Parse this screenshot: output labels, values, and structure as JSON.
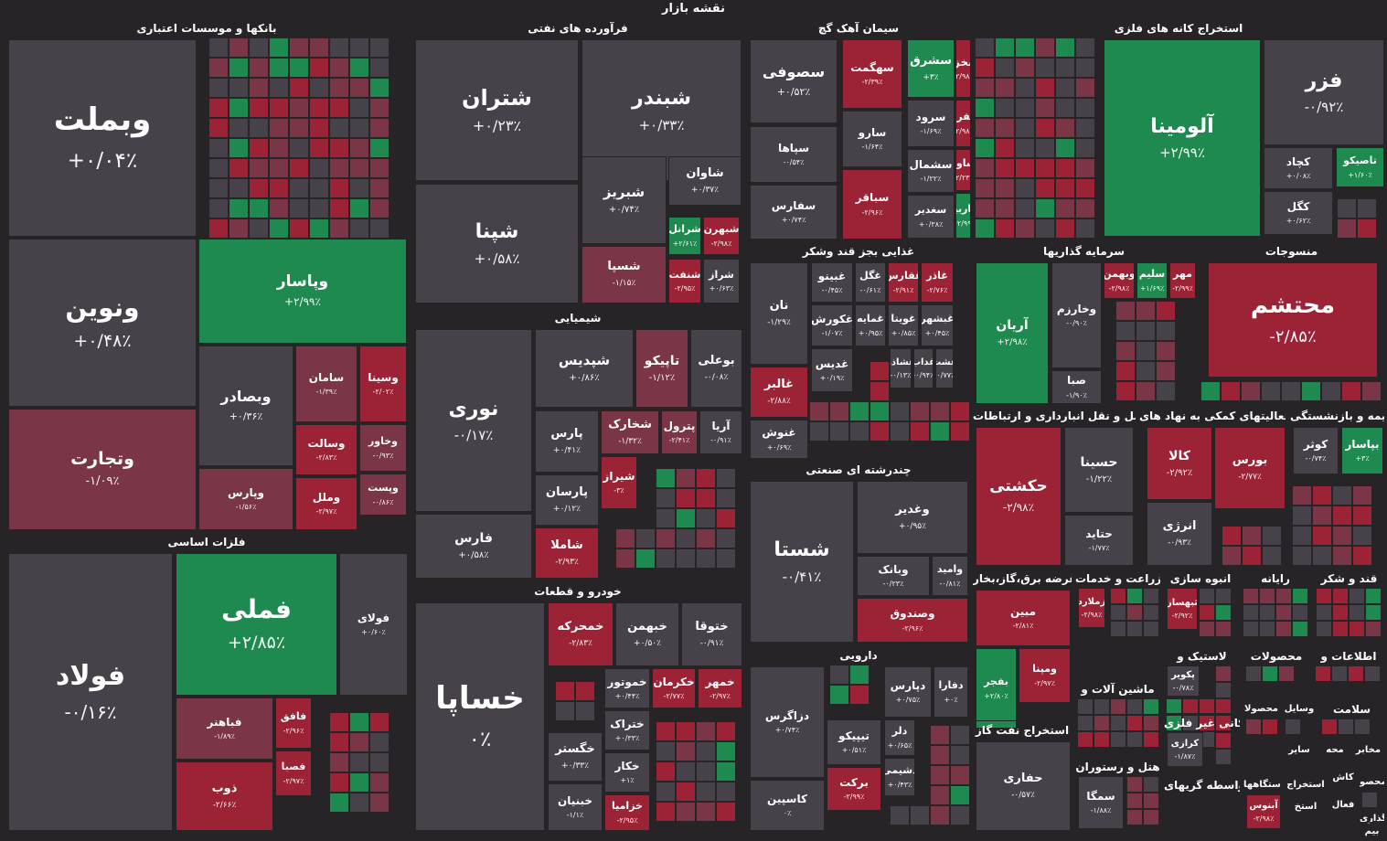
{
  "title": "نقشه بازار",
  "colors": {
    "neutral": "#47424a",
    "pos_strong": "#1e8a50",
    "neg_strong": "#9c2235",
    "neg_mid": "#7a3546",
    "bg": "#262427"
  },
  "chart_data": {
    "type": "treemap",
    "title": "نقشه بازار",
    "sectors": [
      {
        "name": "بانکها و موسسات اعتباری",
        "items": [
          {
            "name": "وبملت",
            "value": "+۰/۰۴٪"
          },
          {
            "name": "ونوین",
            "value": "+۰/۴۸٪"
          },
          {
            "name": "وپاسار",
            "value": "+۲/۹۹٪"
          },
          {
            "name": "وتجارت",
            "value": "-۱/۰۹٪"
          },
          {
            "name": "وبصادر",
            "value": "+۰/۳۶٪"
          },
          {
            "name": "وپارس",
            "value": "-۱/۵۶٪"
          },
          {
            "name": "سامان",
            "value": "-۱/۳۹٪"
          },
          {
            "name": "وسینا",
            "value": "-۲/۰۲٪"
          },
          {
            "name": "وسالت",
            "value": "-۲/۸۳٪"
          },
          {
            "name": "وخاور",
            "value": "-۰/۹۳٪"
          },
          {
            "name": "وملل",
            "value": "-۲/۹۷٪"
          },
          {
            "name": "وپست",
            "value": "-۰/۸۶٪"
          }
        ]
      },
      {
        "name": "فلزات اساسی",
        "items": [
          {
            "name": "فولاد",
            "value": "-۰/۱۶٪"
          },
          {
            "name": "فملی",
            "value": "+۲/۸۵٪"
          },
          {
            "name": "فولای",
            "value": "+۰/۶۰٪"
          },
          {
            "name": "فباهنر",
            "value": "-۱/۸۹٪"
          },
          {
            "name": "فافق",
            "value": "-۲/۹۶٪"
          },
          {
            "name": "فصبا",
            "value": "-۲/۹۷٪"
          },
          {
            "name": "ذوب",
            "value": "-۲/۶۶٪"
          }
        ]
      },
      {
        "name": "فرآورده های نفتی",
        "items": [
          {
            "name": "شتران",
            "value": "+۰/۲۳٪"
          },
          {
            "name": "شبندر",
            "value": "+۰/۳۳٪"
          },
          {
            "name": "شپنا",
            "value": "+۰/۵۸٪"
          },
          {
            "name": "شبریز",
            "value": "+۰/۷۴٪"
          },
          {
            "name": "شاوان",
            "value": "+۰/۳۷٪"
          },
          {
            "name": "شسپا",
            "value": "-۱/۱۵٪"
          },
          {
            "name": "شرانل",
            "value": "+۲/۶۱٪"
          },
          {
            "name": "شبهرن",
            "value": "-۲/۹۸٪"
          },
          {
            "name": "شنفت",
            "value": "-۲/۹۵٪"
          },
          {
            "name": "شراز",
            "value": "+۰/۶۳٪"
          }
        ]
      },
      {
        "name": "شیمیایی",
        "items": [
          {
            "name": "نوری",
            "value": "-۰/۱۷٪"
          },
          {
            "name": "شپدیس",
            "value": "+۰/۸۶٪"
          },
          {
            "name": "تاپیکو",
            "value": "-۱/۱۲٪"
          },
          {
            "name": "بوعلی",
            "value": "-۰/۰۸٪"
          },
          {
            "name": "پارس",
            "value": "+۰/۴۱٪"
          },
          {
            "name": "شخارک",
            "value": "-۱/۳۲٪"
          },
          {
            "name": "پترول",
            "value": "-۲/۴۱٪"
          },
          {
            "name": "آریا",
            "value": "-۰/۹۱٪"
          },
          {
            "name": "پارسان",
            "value": "+۰/۱۲٪"
          },
          {
            "name": "شیراز",
            "value": "-۳٪"
          },
          {
            "name": "فارس",
            "value": "+۰/۵۸٪"
          },
          {
            "name": "شاملا",
            "value": "-۲/۹۳٪"
          }
        ]
      },
      {
        "name": "خودرو و قطعات",
        "items": [
          {
            "name": "خساپا",
            "value": "۰٪"
          },
          {
            "name": "خمحرکه",
            "value": "-۲/۸۳٪"
          },
          {
            "name": "خبهمن",
            "value": "+۰/۵۰٪"
          },
          {
            "name": "ختوقا",
            "value": "-۰/۹۱٪"
          },
          {
            "name": "خموتور",
            "value": "+۰/۴۴٪"
          },
          {
            "name": "خکرمان",
            "value": "-۲/۷۷٪"
          },
          {
            "name": "خمهر",
            "value": "-۲/۹۷٪"
          },
          {
            "name": "ختراک",
            "value": "+۰/۳۳٪"
          },
          {
            "name": "خکار",
            "value": "+۱٪"
          },
          {
            "name": "خزامیا",
            "value": "-۲/۹۵٪"
          },
          {
            "name": "خگستر",
            "value": "+۰/۳۳٪"
          },
          {
            "name": "خبنیان",
            "value": "-۱/۱٪"
          }
        ]
      },
      {
        "name": "سیمان آهک گچ",
        "items": [
          {
            "name": "سصوفی",
            "value": "+۰/۵۲٪"
          },
          {
            "name": "سهگمت",
            "value": "-۲/۳۹٪"
          },
          {
            "name": "سشرق",
            "value": "+۳٪"
          },
          {
            "name": "سخزر",
            "value": "-۲/۹۸٪"
          },
          {
            "name": "ستران",
            "value": "-۲/۹۷٪"
          },
          {
            "name": "ساینک",
            "value": "-۰/۶۱٪"
          },
          {
            "name": "سپاها",
            "value": "-۰/۵۴٪"
          },
          {
            "name": "سارو",
            "value": "-۱/۶۴٪"
          },
          {
            "name": "سرود",
            "value": "-۱/۶۹٪"
          },
          {
            "name": "سفرب",
            "value": "-۲/۹۸٪"
          },
          {
            "name": "سخاش",
            "value": "+۰/۱۹٪"
          },
          {
            "name": "سدستا",
            "value": "+۰/۷۷٪"
          },
          {
            "name": "سهرمز",
            "value": "+۰/۵۵٪"
          },
          {
            "name": "سفارس",
            "value": "+۰/۷۴٪"
          },
          {
            "name": "سباقر",
            "value": "-۲/۹۶٪"
          },
          {
            "name": "سشمال",
            "value": "-۱/۲۲٪"
          },
          {
            "name": "ساوه",
            "value": "-۲/۲۳٪"
          },
          {
            "name": "سغدیر",
            "value": "+۰/۳۸٪"
          },
          {
            "name": "ساربیل",
            "value": "+۲/۹۹٪"
          }
        ]
      },
      {
        "name": "استخراج کانه های فلزی",
        "items": [
          {
            "name": "آلومینا",
            "value": "+۲/۹۹٪"
          },
          {
            "name": "فزر",
            "value": "-۰/۹۲٪"
          },
          {
            "name": "کچاد",
            "value": "+۰/۰۸٪"
          },
          {
            "name": "تاصیکو",
            "value": "+۱/۶۰٪"
          },
          {
            "name": "کگل",
            "value": "+۰/۶۲٪"
          }
        ]
      },
      {
        "name": "غذایی بجز قند وشکر",
        "items": [
          {
            "name": "نان",
            "value": "-۱/۲۹٪"
          },
          {
            "name": "غبینو",
            "value": "-۰/۴۵٪"
          },
          {
            "name": "غگل",
            "value": "-۰/۶۱٪"
          },
          {
            "name": "غفارس",
            "value": "-۲/۹۱٪"
          },
          {
            "name": "غاذر",
            "value": "-۲/۷۶٪"
          },
          {
            "name": "غکورش",
            "value": "-۱/۰۷٪"
          },
          {
            "name": "غمایه",
            "value": "+۰/۹۵٪"
          },
          {
            "name": "غویتا",
            "value": "+۰/۸۵٪"
          },
          {
            "name": "غبشهر",
            "value": "+۰/۴۵٪"
          },
          {
            "name": "غالبر",
            "value": "-۲/۸۸٪"
          },
          {
            "name": "غدیس",
            "value": "+۰/۱۹٪"
          },
          {
            "name": "غشاذر",
            "value": "-۰/۱۳٪"
          },
          {
            "name": "غداب",
            "value": "-۰/۹۴٪"
          },
          {
            "name": "غشت",
            "value": "-۰/۷۷٪"
          },
          {
            "name": "غنوش",
            "value": "+۰/۶۹٪"
          }
        ]
      },
      {
        "name": "سرمایه گذاریها",
        "items": [
          {
            "name": "آریان",
            "value": "+۲/۹۸٪"
          },
          {
            "name": "وبهمن",
            "value": "-۲/۹۸٪"
          },
          {
            "name": "سلیم",
            "value": "+۱/۶۹٪"
          },
          {
            "name": "مهر",
            "value": "-۲/۹۹٪"
          },
          {
            "name": "وخارزم",
            "value": "-۰/۹۰٪"
          },
          {
            "name": "صبا",
            "value": "-۱/۹۰٪"
          }
        ]
      },
      {
        "name": "منسوجات",
        "items": [
          {
            "name": "محتشم",
            "value": "-۲/۸۵٪"
          }
        ]
      },
      {
        "name": "چندرشته ای صنعتی",
        "items": [
          {
            "name": "شستا",
            "value": "-۰/۴۱٪"
          },
          {
            "name": "وغدیر",
            "value": "+۰/۹۵٪"
          },
          {
            "name": "وبانک",
            "value": "-۰/۲۳٪"
          },
          {
            "name": "وامید",
            "value": "-۰/۸۱٪"
          },
          {
            "name": "وصندوق",
            "value": "-۲/۹۶٪"
          }
        ]
      },
      {
        "name": "دارویی",
        "items": [
          {
            "name": "دزاگرس",
            "value": "+۰/۷۴٪"
          },
          {
            "name": "دپارس",
            "value": "+۰/۷۵٪"
          },
          {
            "name": "دفارا",
            "value": "+۰٪"
          },
          {
            "name": "تیپیکو",
            "value": "+۰/۵۱٪"
          },
          {
            "name": "دلر",
            "value": "+۰/۶۵٪"
          },
          {
            "name": "کاسپین",
            "value": "۰٪"
          },
          {
            "name": "برکت",
            "value": "-۲/۹۹٪"
          },
          {
            "name": "دشیمی",
            "value": "+۰/۴۳٪"
          }
        ]
      },
      {
        "name": "حمل و نقل انبارداری و ارتباطات",
        "items": [
          {
            "name": "حکشتی",
            "value": "-۲/۹۸٪"
          },
          {
            "name": "حسینا",
            "value": "-۱/۲۲٪"
          },
          {
            "name": "حتاید",
            "value": "-۱/۷۷٪"
          }
        ]
      },
      {
        "name": "فعالیتهای کمکی به نهاد های",
        "items": [
          {
            "name": "کالا",
            "value": "-۲/۹۲٪"
          },
          {
            "name": "بورس",
            "value": "-۲/۷۷٪"
          },
          {
            "name": "انرژی",
            "value": "-۰/۹۳٪"
          }
        ]
      },
      {
        "name": "بیمه و بازنشستگی",
        "items": [
          {
            "name": "کوثر",
            "value": "-۰/۷۴٪"
          },
          {
            "name": "بپاسار",
            "value": "+۳٪"
          }
        ]
      },
      {
        "name": "عرضه برق،گاز،بخار",
        "items": [
          {
            "name": "مبین",
            "value": "-۲/۸۱٪"
          },
          {
            "name": "بفجر",
            "value": "+۲/۸۰٪"
          },
          {
            "name": "ومپنا",
            "value": "-۲/۹۷٪"
          }
        ]
      },
      {
        "name": "زراعت و خدمات",
        "items": [
          {
            "name": "زملارد",
            "value": "-۲/۹۸٪"
          }
        ]
      },
      {
        "name": "انبوه سازی",
        "items": [
          {
            "name": "ثبهساز",
            "value": "-۲/۹۲٪"
          }
        ]
      },
      {
        "name": "رایانه",
        "items": []
      },
      {
        "name": "قند و شکر",
        "items": []
      },
      {
        "name": "لاستیک و",
        "items": [
          {
            "name": "پکویر",
            "value": "-۰/۷۸٪"
          }
        ]
      },
      {
        "name": "محصولات",
        "items": []
      },
      {
        "name": "اطلاعات و",
        "items": []
      },
      {
        "name": "ماشین آلات و",
        "items": []
      },
      {
        "name": "استخراج نفت گاز",
        "items": [
          {
            "name": "حفاری",
            "value": "-۰/۵۷٪"
          }
        ]
      },
      {
        "name": "کانی غیر فلزی",
        "items": [
          {
            "name": "کرازی",
            "value": "-۱/۸۷٪"
          }
        ]
      },
      {
        "name": "محصولا",
        "items": []
      },
      {
        "name": "وسایل",
        "items": []
      },
      {
        "name": "سلامت",
        "items": []
      },
      {
        "name": "سایر",
        "items": []
      },
      {
        "name": "محه",
        "items": []
      },
      {
        "name": "مخابر",
        "items": []
      },
      {
        "name": "هتل و رستوران",
        "items": [
          {
            "name": "سمگا",
            "value": "-۱/۸۸٪"
          }
        ]
      },
      {
        "name": "واسطه گریهای",
        "items": []
      },
      {
        "name": "دستگاهها",
        "items": [
          {
            "name": "آبنوس",
            "value": "-۲/۹۸٪"
          }
        ]
      },
      {
        "name": "استخراج",
        "items": []
      },
      {
        "name": "استخ",
        "items": []
      },
      {
        "name": "کاش",
        "items": []
      },
      {
        "name": "فعال",
        "items": []
      },
      {
        "name": "محصو",
        "items": []
      },
      {
        "name": "گذاری",
        "items": []
      },
      {
        "name": "بیم",
        "items": []
      }
    ]
  }
}
